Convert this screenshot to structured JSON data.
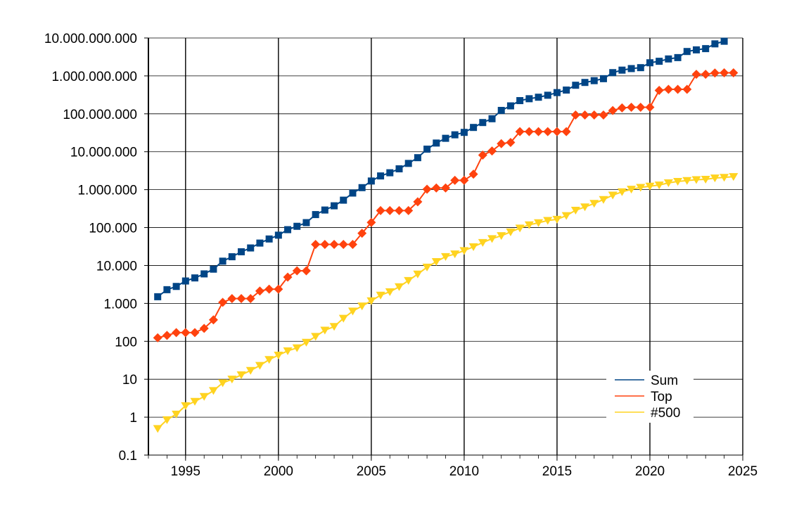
{
  "chart_data": {
    "type": "line",
    "title": "",
    "xlabel": "",
    "ylabel": "",
    "x_scale": "linear",
    "y_scale": "log",
    "xlim": [
      1993,
      2025
    ],
    "ylim": [
      0.1,
      10000000000
    ],
    "x_ticks": [
      {
        "value": 1995,
        "label": "1995"
      },
      {
        "value": 2000,
        "label": "2000"
      },
      {
        "value": 2005,
        "label": "2005"
      },
      {
        "value": 2010,
        "label": "2010"
      },
      {
        "value": 2015,
        "label": "2015"
      },
      {
        "value": 2020,
        "label": "2020"
      },
      {
        "value": 2025,
        "label": "2025"
      }
    ],
    "y_ticks": [
      {
        "value": 0.1,
        "label": "0.1"
      },
      {
        "value": 1,
        "label": "1"
      },
      {
        "value": 10,
        "label": "10"
      },
      {
        "value": 100,
        "label": "100"
      },
      {
        "value": 1000,
        "label": "1.000"
      },
      {
        "value": 10000,
        "label": "10.000"
      },
      {
        "value": 100000,
        "label": "100.000"
      },
      {
        "value": 1000000,
        "label": "1.000.000"
      },
      {
        "value": 10000000,
        "label": "10.000.000"
      },
      {
        "value": 100000000,
        "label": "100.000.000"
      },
      {
        "value": 1000000000,
        "label": "1.000.000.000"
      },
      {
        "value": 10000000000,
        "label": "10.000.000.000"
      }
    ],
    "grid": {
      "vertical": true,
      "horizontal": true
    },
    "legend_position": "bottom-right",
    "series": [
      {
        "name": "Sum",
        "color": "#004586",
        "marker": "square",
        "points": [
          [
            1993.5,
            1500
          ],
          [
            1994.0,
            2300
          ],
          [
            1994.5,
            2800
          ],
          [
            1995.0,
            3900
          ],
          [
            1995.5,
            4700
          ],
          [
            1996.0,
            6000
          ],
          [
            1996.5,
            8000
          ],
          [
            1997.0,
            13000
          ],
          [
            1997.5,
            17000
          ],
          [
            1998.0,
            23000
          ],
          [
            1998.5,
            29000
          ],
          [
            1999.0,
            39000
          ],
          [
            1999.5,
            50000
          ],
          [
            2000.0,
            63000
          ],
          [
            2000.5,
            88000
          ],
          [
            2001.0,
            108000
          ],
          [
            2001.5,
            135000
          ],
          [
            2002.0,
            220000
          ],
          [
            2002.5,
            290000
          ],
          [
            2003.0,
            375000
          ],
          [
            2003.5,
            528000
          ],
          [
            2004.0,
            813000
          ],
          [
            2004.5,
            1130000
          ],
          [
            2005.0,
            1690000
          ],
          [
            2005.5,
            2300000
          ],
          [
            2006.0,
            2790000
          ],
          [
            2006.5,
            3540000
          ],
          [
            2007.0,
            4920000
          ],
          [
            2007.5,
            6970000
          ],
          [
            2008.0,
            11700000
          ],
          [
            2008.5,
            16950000
          ],
          [
            2009.0,
            22600000
          ],
          [
            2009.5,
            27950000
          ],
          [
            2010.0,
            32400000
          ],
          [
            2010.5,
            43700000
          ],
          [
            2011.0,
            58900000
          ],
          [
            2011.5,
            74200000
          ],
          [
            2012.0,
            123000000
          ],
          [
            2012.5,
            162000000
          ],
          [
            2013.0,
            223000000
          ],
          [
            2013.5,
            250000000
          ],
          [
            2014.0,
            274000000
          ],
          [
            2014.5,
            309000000
          ],
          [
            2015.0,
            363000000
          ],
          [
            2015.5,
            423000000
          ],
          [
            2016.0,
            567000000
          ],
          [
            2016.5,
            672000000
          ],
          [
            2017.0,
            749000000
          ],
          [
            2017.5,
            845000000
          ],
          [
            2018.0,
            1220000000
          ],
          [
            2018.5,
            1420000000
          ],
          [
            2019.0,
            1560000000
          ],
          [
            2019.5,
            1650000000
          ],
          [
            2020.0,
            2220000000
          ],
          [
            2020.5,
            2430000000
          ],
          [
            2021.0,
            2800000000
          ],
          [
            2021.5,
            3040000000
          ],
          [
            2022.0,
            4400000000
          ],
          [
            2022.5,
            4860000000
          ],
          [
            2023.0,
            5240000000
          ],
          [
            2023.5,
            7000000000
          ],
          [
            2024.0,
            8200000000
          ]
        ]
      },
      {
        "name": "Top",
        "color": "#ff420e",
        "marker": "diamond",
        "points": [
          [
            1993.5,
            124
          ],
          [
            1994.0,
            143
          ],
          [
            1994.5,
            170
          ],
          [
            1995.0,
            170
          ],
          [
            1995.5,
            170
          ],
          [
            1996.0,
            220
          ],
          [
            1996.5,
            368
          ],
          [
            1997.0,
            1068
          ],
          [
            1997.5,
            1338
          ],
          [
            1998.0,
            1338
          ],
          [
            1998.5,
            1338
          ],
          [
            1999.0,
            2121
          ],
          [
            1999.5,
            2379
          ],
          [
            2000.0,
            2379
          ],
          [
            2000.5,
            4938
          ],
          [
            2001.0,
            7226
          ],
          [
            2001.5,
            7226
          ],
          [
            2002.0,
            35860
          ],
          [
            2002.5,
            35860
          ],
          [
            2003.0,
            35860
          ],
          [
            2003.5,
            35860
          ],
          [
            2004.0,
            35860
          ],
          [
            2004.5,
            70720
          ],
          [
            2005.0,
            136800
          ],
          [
            2005.5,
            280600
          ],
          [
            2006.0,
            280600
          ],
          [
            2006.5,
            280600
          ],
          [
            2007.0,
            280600
          ],
          [
            2007.5,
            478200
          ],
          [
            2008.0,
            1026000
          ],
          [
            2008.5,
            1105000
          ],
          [
            2009.0,
            1105000
          ],
          [
            2009.5,
            1759000
          ],
          [
            2010.0,
            1759000
          ],
          [
            2010.5,
            2566000
          ],
          [
            2011.0,
            8162000
          ],
          [
            2011.5,
            10510000
          ],
          [
            2012.0,
            16320000
          ],
          [
            2012.5,
            17590000
          ],
          [
            2013.0,
            33860000
          ],
          [
            2013.5,
            33860000
          ],
          [
            2014.0,
            33860000
          ],
          [
            2014.5,
            33860000
          ],
          [
            2015.0,
            33860000
          ],
          [
            2015.5,
            33860000
          ],
          [
            2016.0,
            93010000
          ],
          [
            2016.5,
            93010000
          ],
          [
            2017.0,
            93010000
          ],
          [
            2017.5,
            93010000
          ],
          [
            2018.0,
            122300000
          ],
          [
            2018.5,
            143500000
          ],
          [
            2019.0,
            148600000
          ],
          [
            2019.5,
            148600000
          ],
          [
            2020.0,
            148600000
          ],
          [
            2020.5,
            415500000
          ],
          [
            2021.0,
            442000000
          ],
          [
            2021.5,
            442000000
          ],
          [
            2022.0,
            442000000
          ],
          [
            2022.5,
            1102000000
          ],
          [
            2023.0,
            1102000000
          ],
          [
            2023.5,
            1194000000
          ],
          [
            2024.0,
            1206000000
          ],
          [
            2024.5,
            1206000000
          ]
        ]
      },
      {
        "name": "#500",
        "color": "#ffd320",
        "marker": "triangle-down",
        "points": [
          [
            1993.5,
            0.5
          ],
          [
            1994.0,
            0.85
          ],
          [
            1994.5,
            1.2
          ],
          [
            1995.0,
            2.0
          ],
          [
            1995.5,
            2.6
          ],
          [
            1996.0,
            3.5
          ],
          [
            1996.5,
            5.0
          ],
          [
            1997.0,
            8.0
          ],
          [
            1997.5,
            10
          ],
          [
            1998.0,
            13
          ],
          [
            1998.5,
            17
          ],
          [
            1999.0,
            23
          ],
          [
            1999.5,
            33
          ],
          [
            2000.0,
            43
          ],
          [
            2000.5,
            56
          ],
          [
            2001.0,
            67
          ],
          [
            2001.5,
            94
          ],
          [
            2002.0,
            134
          ],
          [
            2002.5,
            196
          ],
          [
            2003.0,
            245
          ],
          [
            2003.5,
            403
          ],
          [
            2004.0,
            624
          ],
          [
            2004.5,
            850
          ],
          [
            2005.0,
            1166
          ],
          [
            2005.5,
            1646
          ],
          [
            2006.0,
            2026
          ],
          [
            2006.5,
            2737
          ],
          [
            2007.0,
            4005
          ],
          [
            2007.5,
            5929
          ],
          [
            2008.0,
            9000
          ],
          [
            2008.5,
            12640
          ],
          [
            2009.0,
            17090
          ],
          [
            2009.5,
            20050
          ],
          [
            2010.0,
            24670
          ],
          [
            2010.5,
            31120
          ],
          [
            2011.0,
            40190
          ],
          [
            2011.5,
            50940
          ],
          [
            2012.0,
            60820
          ],
          [
            2012.5,
            76500
          ],
          [
            2013.0,
            96620
          ],
          [
            2013.5,
            117800
          ],
          [
            2014.0,
            133700
          ],
          [
            2014.5,
            153400
          ],
          [
            2015.0,
            164600
          ],
          [
            2015.5,
            206400
          ],
          [
            2016.0,
            286000
          ],
          [
            2016.5,
            349300
          ],
          [
            2017.0,
            432200
          ],
          [
            2017.5,
            548400
          ],
          [
            2018.0,
            715600
          ],
          [
            2018.5,
            874800
          ],
          [
            2019.0,
            1022000
          ],
          [
            2019.5,
            1142000
          ],
          [
            2020.0,
            1230000
          ],
          [
            2020.5,
            1319000
          ],
          [
            2021.0,
            1511000
          ],
          [
            2021.5,
            1646000
          ],
          [
            2022.0,
            1730000
          ],
          [
            2022.5,
            1830000
          ],
          [
            2023.0,
            1870000
          ],
          [
            2023.5,
            2020000
          ],
          [
            2024.0,
            2100000
          ],
          [
            2024.5,
            2200000
          ]
        ]
      }
    ]
  }
}
